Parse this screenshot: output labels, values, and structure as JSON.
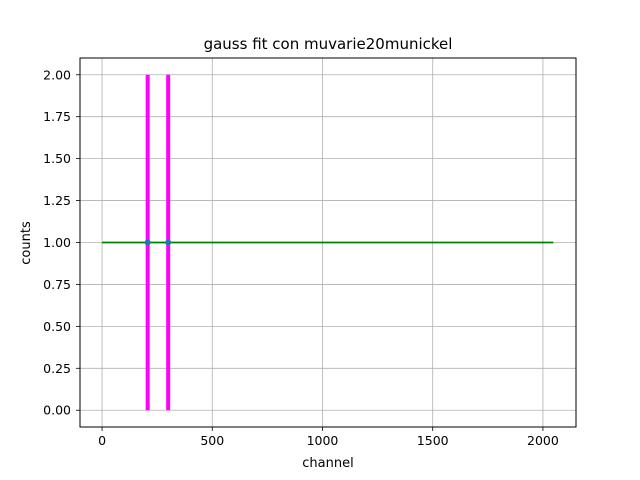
{
  "chart_data": {
    "type": "line",
    "title": "gauss fit con muvarie20munickel",
    "xlabel": "channel",
    "ylabel": "counts",
    "xlim": [
      -100,
      2150
    ],
    "ylim": [
      -0.1,
      2.1
    ],
    "xticks": [
      0,
      500,
      1000,
      1500,
      2000
    ],
    "yticks": [
      0.0,
      0.25,
      0.5,
      0.75,
      1.0,
      1.25,
      1.5,
      1.75,
      2.0
    ],
    "grid": true,
    "legend": "none",
    "series": [
      {
        "kind": "line",
        "color": "#008000",
        "x": [
          0,
          2047
        ],
        "y": [
          1,
          1
        ]
      },
      {
        "kind": "vline",
        "color": "#ff00ff",
        "x": 207,
        "y": [
          0,
          2
        ]
      },
      {
        "kind": "vline",
        "color": "#ff00ff",
        "x": 300,
        "y": [
          0,
          2
        ]
      },
      {
        "kind": "points",
        "color": "#1f77b4",
        "x": [
          207,
          300
        ],
        "y": [
          1,
          1
        ]
      }
    ]
  }
}
